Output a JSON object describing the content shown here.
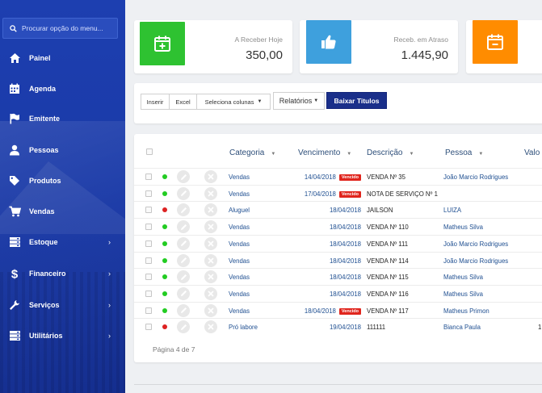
{
  "sidebar": {
    "search_placeholder": "Procurar opção do menu...",
    "items": [
      {
        "label": "Painel",
        "icon": "home-icon",
        "chevron": false
      },
      {
        "label": "Agenda",
        "icon": "calendar-icon",
        "chevron": false
      },
      {
        "label": "Emitente",
        "icon": "flag-icon",
        "chevron": false
      },
      {
        "label": "Pessoas",
        "icon": "user-icon",
        "chevron": false
      },
      {
        "label": "Produtos",
        "icon": "tags-icon",
        "chevron": false
      },
      {
        "label": "Vendas",
        "icon": "cart-icon",
        "chevron": false
      },
      {
        "label": "Estoque",
        "icon": "server-icon",
        "chevron": true
      },
      {
        "label": "Financeiro",
        "icon": "dollar-icon",
        "chevron": true
      },
      {
        "label": "Serviços",
        "icon": "wrench-icon",
        "chevron": true
      },
      {
        "label": "Utilitários",
        "icon": "server-icon",
        "chevron": true
      }
    ],
    "chevron_glyph": "›"
  },
  "stats": [
    {
      "label": "A Receber Hoje",
      "value": "350,00",
      "color": "#2ec231",
      "icon": "calendar-plus-icon"
    },
    {
      "label": "Receb. em Atraso",
      "value": "1.445,90",
      "color": "#3ea0dd",
      "icon": "thumbs-up-icon"
    },
    {
      "label": "",
      "value": "",
      "color": "#ff8c00",
      "icon": "calendar-minus-icon"
    }
  ],
  "toolbar": {
    "inserir": "Inserir",
    "excel": "Excel",
    "seleciona_colunas": "Seleciona colunas",
    "relatorios": "Relatórios",
    "baixar_titulos": "Baixar Titulos"
  },
  "table": {
    "headers": {
      "categoria": "Categoria",
      "vencimento": "Vencimento",
      "descricao": "Descrição",
      "pessoa": "Pessoa",
      "valor": "Valo"
    },
    "rows": [
      {
        "status": "#22cc22",
        "categoria": "Vendas",
        "vencimento": "14/04/2018",
        "vencido": "Vencido",
        "descricao": "VENDA Nº 35",
        "pessoa": "João Marcio Rodrigues",
        "valor": ""
      },
      {
        "status": "#22cc22",
        "categoria": "Vendas",
        "vencimento": "17/04/2018",
        "vencido": "Vencido",
        "descricao": "NOTA DE SERVIÇO Nº 1",
        "pessoa": "",
        "valor": ""
      },
      {
        "status": "#dd2222",
        "categoria": "Aluguel",
        "vencimento": "18/04/2018",
        "vencido": "",
        "descricao": "JAILSON",
        "pessoa": "LUIZA",
        "valor": ""
      },
      {
        "status": "#22cc22",
        "categoria": "Vendas",
        "vencimento": "18/04/2018",
        "vencido": "",
        "descricao": "VENDA Nº 110",
        "pessoa": "Matheus Silva",
        "valor": ""
      },
      {
        "status": "#22cc22",
        "categoria": "Vendas",
        "vencimento": "18/04/2018",
        "vencido": "",
        "descricao": "VENDA Nº 111",
        "pessoa": "João Marcio Rodrigues",
        "valor": ""
      },
      {
        "status": "#22cc22",
        "categoria": "Vendas",
        "vencimento": "18/04/2018",
        "vencido": "",
        "descricao": "VENDA Nº 114",
        "pessoa": "João Marcio Rodrigues",
        "valor": ""
      },
      {
        "status": "#22cc22",
        "categoria": "Vendas",
        "vencimento": "18/04/2018",
        "vencido": "",
        "descricao": "VENDA Nº 115",
        "pessoa": "Matheus Silva",
        "valor": ""
      },
      {
        "status": "#22cc22",
        "categoria": "Vendas",
        "vencimento": "18/04/2018",
        "vencido": "",
        "descricao": "VENDA Nº 116",
        "pessoa": "Matheus Silva",
        "valor": ""
      },
      {
        "status": "#22cc22",
        "categoria": "Vendas",
        "vencimento": "18/04/2018",
        "vencido": "Vencido",
        "descricao": "VENDA Nº 117",
        "pessoa": "Matheus Primon",
        "valor": ""
      },
      {
        "status": "#dd2222",
        "categoria": "Pró labore",
        "vencimento": "19/04/2018",
        "vencido": "",
        "descricao": "111111",
        "pessoa": "Bianca Paula",
        "valor": "1"
      }
    ],
    "pagination": "Página 4 de 7"
  }
}
